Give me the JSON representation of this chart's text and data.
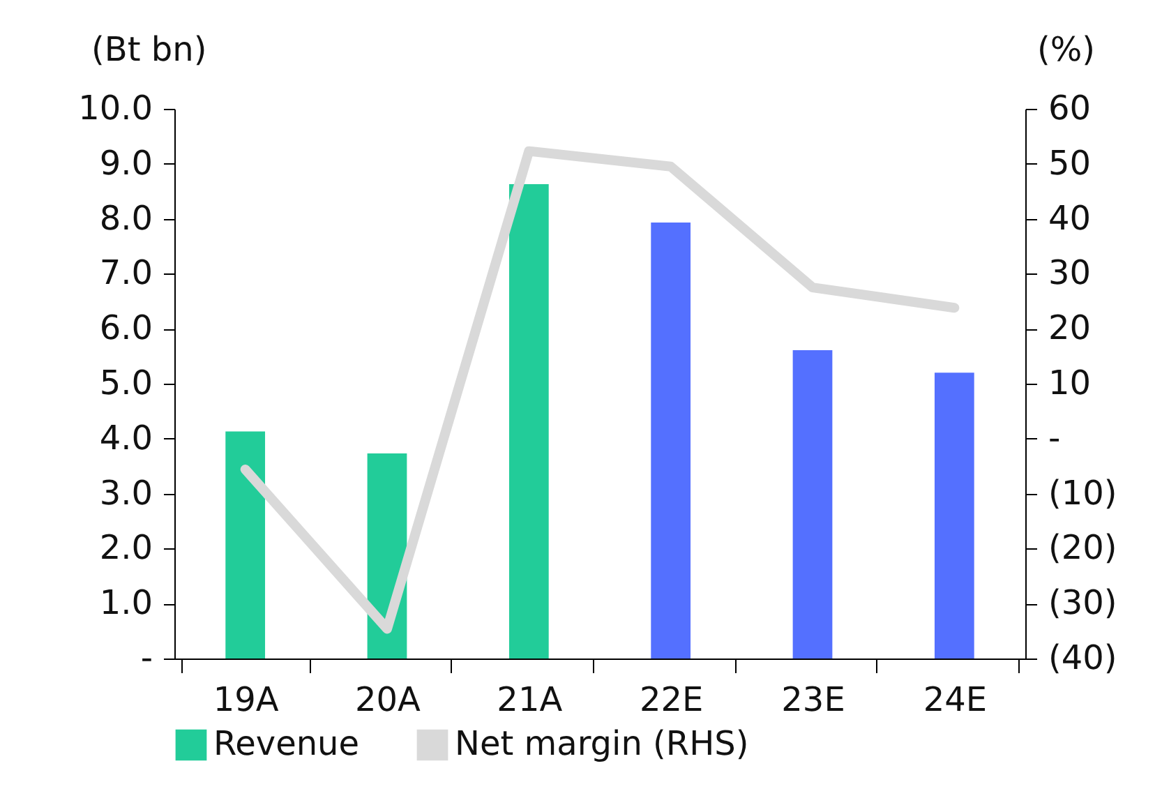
{
  "chart_data": {
    "type": "bar",
    "ylabel": "(Bt bn)",
    "y2label": "(%)",
    "categories": [
      "19A",
      "20A",
      "21A",
      "22E",
      "23E",
      "24E"
    ],
    "series": [
      {
        "name": "Revenue",
        "color": "#22cc99",
        "colors": [
          "#22cc99",
          "#22cc99",
          "#22cc99",
          "#5470ff",
          "#5470ff",
          "#5470ff"
        ],
        "values": [
          4.13,
          3.73,
          8.63,
          7.93,
          5.61,
          5.2
        ]
      },
      {
        "name": "Net margin (RHS)",
        "type": "line",
        "axis": "y2",
        "color": "#d9d9d9",
        "values": [
          -5.6,
          -34.6,
          52.3,
          49.5,
          27.5,
          23.8
        ]
      }
    ],
    "ylim": [
      0,
      10
    ],
    "yticks": [
      {
        "value": 0,
        "label": "-"
      },
      {
        "value": 1,
        "label": "1.0"
      },
      {
        "value": 2,
        "label": "2.0"
      },
      {
        "value": 3,
        "label": "3.0"
      },
      {
        "value": 4,
        "label": "4.0"
      },
      {
        "value": 5,
        "label": "5.0"
      },
      {
        "value": 6,
        "label": "6.0"
      },
      {
        "value": 7,
        "label": "7.0"
      },
      {
        "value": 8,
        "label": "8.0"
      },
      {
        "value": 9,
        "label": "9.0"
      },
      {
        "value": 10,
        "label": "10.0"
      }
    ],
    "y2lim": [
      -40,
      60
    ],
    "y2ticks": [
      {
        "value": -40,
        "label": "(40)"
      },
      {
        "value": -30,
        "label": "(30)"
      },
      {
        "value": -20,
        "label": "(20)"
      },
      {
        "value": -10,
        "label": "(10)"
      },
      {
        "value": 0,
        "label": "-"
      },
      10,
      20,
      30,
      40,
      50,
      60
    ],
    "grid": false,
    "legend": "bottom",
    "marker": "none",
    "line_style": "solid"
  }
}
